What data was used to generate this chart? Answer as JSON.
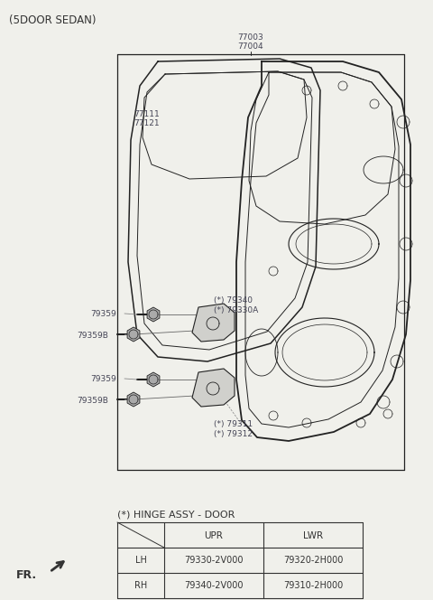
{
  "bg_color": "#f0f0eb",
  "line_color": "#222222",
  "text_color": "#444455",
  "dark_color": "#333333",
  "figsize": [
    4.8,
    6.64
  ],
  "dpi": 100,
  "title": "(5DOOR SEDAN)",
  "label_77003": "77003",
  "label_77004": "77004",
  "label_77111": "77111",
  "label_77121": "77121",
  "label_79340": "(*) 79340",
  "label_79330A": "(*) 79330A",
  "label_79359_u": "79359",
  "label_79359B_u": "79359B",
  "label_79359_l": "79359",
  "label_79359B_l": "79359B",
  "label_79311": "(*) 79311",
  "label_79312": "(*) 79312",
  "table_title": "(*) HINGE ASSY - DOOR",
  "table_col_headers": [
    "",
    "UPR",
    "LWR"
  ],
  "table_rows": [
    [
      "LH",
      "79330-2V000",
      "79320-2H000"
    ],
    [
      "RH",
      "79340-2V000",
      "79310-2H000"
    ]
  ]
}
